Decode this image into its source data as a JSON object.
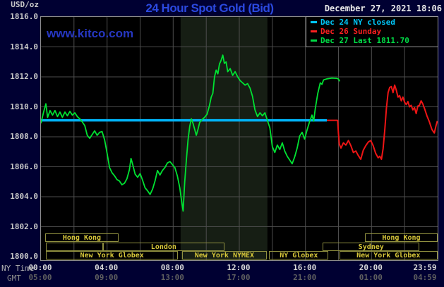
{
  "header": {
    "unit_label": "USD/oz",
    "title": "24 Hour Spot Gold (Bid)",
    "datetime": "December 27, 2021 18:06",
    "watermark": "www.kitco.com"
  },
  "legend": {
    "items": [
      {
        "label": "Dec 24 NY closed",
        "color": "#00c8fa"
      },
      {
        "label": "Dec 26 Sunday",
        "color": "#fb2020"
      },
      {
        "label": "Dec 27 Last 1811.70",
        "color": "#00dc46"
      }
    ]
  },
  "y_axis": {
    "ticks": [
      1816.0,
      1814.0,
      1812.0,
      1810.0,
      1808.0,
      1806.0,
      1804.0,
      1802.0,
      1800.0
    ]
  },
  "x_axis": {
    "ny_label": "NY Time",
    "gmt_label": "GMT",
    "ticks": [
      {
        "hour": 0,
        "ny": "00:00",
        "gmt": "05:00"
      },
      {
        "hour": 4,
        "ny": "04:00",
        "gmt": "09:00"
      },
      {
        "hour": 8,
        "ny": "08:00",
        "gmt": "13:00"
      },
      {
        "hour": 12,
        "ny": "12:00",
        "gmt": "17:00"
      },
      {
        "hour": 16,
        "ny": "16:00",
        "gmt": "21:00"
      },
      {
        "hour": 20,
        "ny": "20:00",
        "gmt": "01:00"
      },
      {
        "hour": 23.98,
        "ny": "23:59",
        "gmt": "04:59"
      }
    ]
  },
  "sessions": {
    "rows": [
      [
        {
          "label": "Hong Kong",
          "start": 0.25,
          "end": 4.7
        },
        {
          "label": "Hong Kong",
          "start": 19.6,
          "end": 24.0
        }
      ],
      [
        {
          "label": "",
          "start": 0.3,
          "end": 3.75
        },
        {
          "label": "London",
          "start": 3.75,
          "end": 11.1
        },
        {
          "label": "Sydney",
          "start": 17.05,
          "end": 22.9
        }
      ],
      [
        {
          "label": "New York Globex",
          "start": 0.3,
          "end": 8.3
        },
        {
          "label": "New York NYMEX",
          "start": 8.55,
          "end": 13.65
        },
        {
          "label": "NY Globex",
          "start": 13.8,
          "end": 17.4
        },
        {
          "label": "New York Globex",
          "start": 18.05,
          "end": 24.0
        }
      ]
    ]
  },
  "chart_data": {
    "type": "line",
    "title": "24 Hour Spot Gold (Bid)",
    "xlabel": "NY Time (hours 00:00-23:59)",
    "ylabel": "USD/oz",
    "x_range_hours": [
      0,
      24
    ],
    "ylim": [
      1800.0,
      1816.0
    ],
    "grid_hours_step": 2,
    "grid_price_step": 2,
    "nymex_shade_hours": [
      8.45,
      13.7
    ],
    "shade_color": "#161e14",
    "grid_color": "#4d4d4d",
    "series": [
      {
        "name": "Dec 24 NY closed",
        "color": "#00b2f5",
        "width": 3.5,
        "points": [
          [
            0,
            1809.1
          ],
          [
            17.3,
            1809.1
          ]
        ]
      },
      {
        "name": "Dec 26 Sunday",
        "color": "#ee1515",
        "width": 2,
        "points": [
          [
            17.3,
            1809.1
          ],
          [
            17.95,
            1809.1
          ],
          [
            18.0,
            1808.2
          ],
          [
            18.05,
            1807.5
          ],
          [
            18.15,
            1807.25
          ],
          [
            18.3,
            1807.6
          ],
          [
            18.45,
            1807.45
          ],
          [
            18.6,
            1807.75
          ],
          [
            18.75,
            1807.4
          ],
          [
            18.9,
            1806.95
          ],
          [
            19.05,
            1807.05
          ],
          [
            19.2,
            1806.75
          ],
          [
            19.35,
            1806.5
          ],
          [
            19.5,
            1807.1
          ],
          [
            19.65,
            1807.4
          ],
          [
            19.8,
            1807.65
          ],
          [
            19.95,
            1807.75
          ],
          [
            20.1,
            1807.4
          ],
          [
            20.25,
            1806.9
          ],
          [
            20.4,
            1806.6
          ],
          [
            20.5,
            1806.7
          ],
          [
            20.6,
            1806.5
          ],
          [
            20.7,
            1807.2
          ],
          [
            20.8,
            1808.45
          ],
          [
            20.9,
            1809.9
          ],
          [
            21.0,
            1810.95
          ],
          [
            21.1,
            1811.3
          ],
          [
            21.2,
            1811.35
          ],
          [
            21.3,
            1810.95
          ],
          [
            21.4,
            1811.45
          ],
          [
            21.5,
            1811.1
          ],
          [
            21.6,
            1810.65
          ],
          [
            21.7,
            1810.75
          ],
          [
            21.8,
            1810.4
          ],
          [
            21.9,
            1810.65
          ],
          [
            22.0,
            1810.3
          ],
          [
            22.1,
            1810.15
          ],
          [
            22.2,
            1810.35
          ],
          [
            22.3,
            1810.0
          ],
          [
            22.4,
            1810.1
          ],
          [
            22.5,
            1809.8
          ],
          [
            22.6,
            1809.95
          ],
          [
            22.7,
            1809.55
          ],
          [
            22.8,
            1810.05
          ],
          [
            22.9,
            1810.1
          ],
          [
            23.0,
            1810.4
          ],
          [
            23.1,
            1810.2
          ],
          [
            23.2,
            1809.9
          ],
          [
            23.35,
            1809.4
          ],
          [
            23.5,
            1809.0
          ],
          [
            23.65,
            1808.5
          ],
          [
            23.8,
            1808.25
          ],
          [
            23.9,
            1808.75
          ],
          [
            23.98,
            1809.05
          ]
        ]
      },
      {
        "name": "Dec 27 Last 1811.70",
        "color": "#00e232",
        "width": 1.8,
        "points": [
          [
            0,
            1808.9
          ],
          [
            0.15,
            1809.6
          ],
          [
            0.3,
            1810.2
          ],
          [
            0.4,
            1809.3
          ],
          [
            0.55,
            1809.75
          ],
          [
            0.7,
            1809.45
          ],
          [
            0.85,
            1809.75
          ],
          [
            1.0,
            1809.35
          ],
          [
            1.15,
            1809.65
          ],
          [
            1.3,
            1809.3
          ],
          [
            1.45,
            1809.65
          ],
          [
            1.6,
            1809.4
          ],
          [
            1.75,
            1809.7
          ],
          [
            1.9,
            1809.45
          ],
          [
            2.05,
            1809.6
          ],
          [
            2.2,
            1809.35
          ],
          [
            2.35,
            1809.2
          ],
          [
            2.5,
            1809.0
          ],
          [
            2.65,
            1808.75
          ],
          [
            2.8,
            1808.1
          ],
          [
            2.95,
            1807.9
          ],
          [
            3.1,
            1808.15
          ],
          [
            3.25,
            1808.4
          ],
          [
            3.4,
            1808.1
          ],
          [
            3.55,
            1808.3
          ],
          [
            3.7,
            1808.35
          ],
          [
            3.85,
            1807.8
          ],
          [
            4.0,
            1806.9
          ],
          [
            4.15,
            1805.95
          ],
          [
            4.3,
            1805.6
          ],
          [
            4.45,
            1805.4
          ],
          [
            4.6,
            1805.15
          ],
          [
            4.75,
            1805.05
          ],
          [
            4.9,
            1804.8
          ],
          [
            5.05,
            1804.9
          ],
          [
            5.2,
            1805.2
          ],
          [
            5.35,
            1805.8
          ],
          [
            5.45,
            1806.55
          ],
          [
            5.55,
            1806.15
          ],
          [
            5.7,
            1805.5
          ],
          [
            5.85,
            1805.3
          ],
          [
            6.0,
            1805.55
          ],
          [
            6.15,
            1805.1
          ],
          [
            6.3,
            1804.6
          ],
          [
            6.45,
            1804.4
          ],
          [
            6.6,
            1804.15
          ],
          [
            6.75,
            1804.5
          ],
          [
            6.9,
            1805.05
          ],
          [
            7.05,
            1805.75
          ],
          [
            7.2,
            1805.45
          ],
          [
            7.35,
            1805.75
          ],
          [
            7.5,
            1805.95
          ],
          [
            7.65,
            1806.25
          ],
          [
            7.8,
            1806.35
          ],
          [
            7.95,
            1806.15
          ],
          [
            8.1,
            1805.95
          ],
          [
            8.25,
            1805.4
          ],
          [
            8.4,
            1804.6
          ],
          [
            8.5,
            1803.8
          ],
          [
            8.6,
            1803.05
          ],
          [
            8.7,
            1805.0
          ],
          [
            8.8,
            1806.5
          ],
          [
            8.9,
            1807.8
          ],
          [
            9.0,
            1808.7
          ],
          [
            9.1,
            1809.2
          ],
          [
            9.2,
            1808.9
          ],
          [
            9.3,
            1808.5
          ],
          [
            9.4,
            1808.1
          ],
          [
            9.5,
            1808.5
          ],
          [
            9.6,
            1808.95
          ],
          [
            9.75,
            1809.15
          ],
          [
            9.9,
            1809.3
          ],
          [
            10.05,
            1809.5
          ],
          [
            10.2,
            1810.1
          ],
          [
            10.3,
            1810.65
          ],
          [
            10.4,
            1810.9
          ],
          [
            10.5,
            1812.0
          ],
          [
            10.6,
            1812.45
          ],
          [
            10.7,
            1812.2
          ],
          [
            10.8,
            1812.85
          ],
          [
            10.9,
            1813.1
          ],
          [
            11.0,
            1813.45
          ],
          [
            11.1,
            1812.9
          ],
          [
            11.2,
            1813.0
          ],
          [
            11.3,
            1812.35
          ],
          [
            11.45,
            1812.55
          ],
          [
            11.6,
            1812.1
          ],
          [
            11.75,
            1812.35
          ],
          [
            11.9,
            1812.0
          ],
          [
            12.05,
            1811.75
          ],
          [
            12.2,
            1811.6
          ],
          [
            12.35,
            1811.45
          ],
          [
            12.5,
            1811.55
          ],
          [
            12.65,
            1811.25
          ],
          [
            12.8,
            1810.7
          ],
          [
            12.95,
            1809.8
          ],
          [
            13.1,
            1809.35
          ],
          [
            13.25,
            1809.6
          ],
          [
            13.4,
            1809.4
          ],
          [
            13.55,
            1809.6
          ],
          [
            13.7,
            1809.1
          ],
          [
            13.85,
            1808.6
          ],
          [
            14.0,
            1807.35
          ],
          [
            14.15,
            1806.95
          ],
          [
            14.3,
            1807.45
          ],
          [
            14.45,
            1807.15
          ],
          [
            14.6,
            1807.6
          ],
          [
            14.75,
            1807.05
          ],
          [
            14.9,
            1806.7
          ],
          [
            15.05,
            1806.45
          ],
          [
            15.2,
            1806.2
          ],
          [
            15.35,
            1806.65
          ],
          [
            15.5,
            1807.25
          ],
          [
            15.65,
            1808.05
          ],
          [
            15.8,
            1808.3
          ],
          [
            15.95,
            1807.85
          ],
          [
            16.1,
            1808.45
          ],
          [
            16.25,
            1809.0
          ],
          [
            16.4,
            1809.45
          ],
          [
            16.5,
            1809.05
          ],
          [
            16.6,
            1809.9
          ],
          [
            16.75,
            1810.9
          ],
          [
            16.9,
            1811.6
          ],
          [
            17.0,
            1811.5
          ],
          [
            17.1,
            1811.8
          ],
          [
            17.3,
            1811.87
          ],
          [
            17.6,
            1811.92
          ],
          [
            17.9,
            1811.9
          ],
          [
            18.0,
            1811.85
          ],
          [
            18.07,
            1811.7
          ]
        ]
      }
    ]
  }
}
